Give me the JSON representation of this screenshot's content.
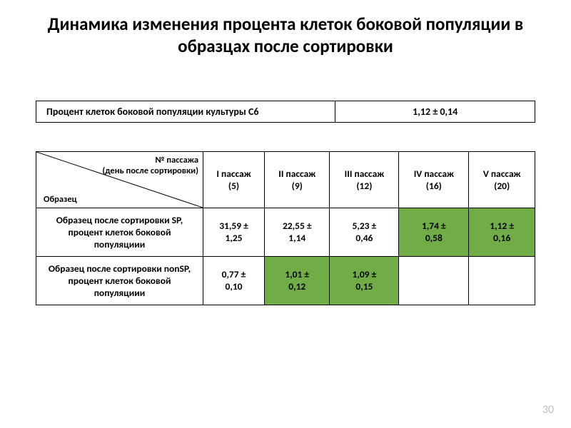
{
  "title": "Динамика изменения процента клеток боковой популяции в образцах после сортировки",
  "page_number": "30",
  "colors": {
    "highlight_bg": "#70ad47",
    "pagenum_color": "#bfbfbf",
    "border_color": "#000000",
    "background": "#ffffff"
  },
  "table1": {
    "label": "Процент клеток боковой популяции культуры С6",
    "value": "1,12 ± 0,14"
  },
  "table2": {
    "corner": {
      "top": "№ пассажа\n(день после сортировки)",
      "bottom": "Образец"
    },
    "columns": [
      {
        "name": "I пассаж",
        "day": "(5)"
      },
      {
        "name": "II пассаж",
        "day": "(9)"
      },
      {
        "name": "III пассаж",
        "day": "(12)"
      },
      {
        "name": "IV пассаж",
        "day": "(16)"
      },
      {
        "name": "V пассаж",
        "day": "(20)"
      }
    ],
    "rows": [
      {
        "label": "Образец после сортировки SP, процент клеток боковой популяциии",
        "cells": [
          {
            "value": "31,59 ± 1,25",
            "highlight": false
          },
          {
            "value": "22,55 ± 1,14",
            "highlight": false
          },
          {
            "value": "5,23 ± 0,46",
            "highlight": false
          },
          {
            "value": "1,74 ± 0,58",
            "highlight": true
          },
          {
            "value": "1,12 ± 0,16",
            "highlight": true
          }
        ]
      },
      {
        "label": "Образец после сортировки nonSP, процент клеток боковой популяциии",
        "cells": [
          {
            "value": "0,77 ± 0,10",
            "highlight": false
          },
          {
            "value": "1,01 ± 0,12",
            "highlight": true
          },
          {
            "value": "1,09 ± 0,15",
            "highlight": true
          },
          {
            "value": "",
            "highlight": false
          },
          {
            "value": "",
            "highlight": false
          }
        ]
      }
    ]
  }
}
